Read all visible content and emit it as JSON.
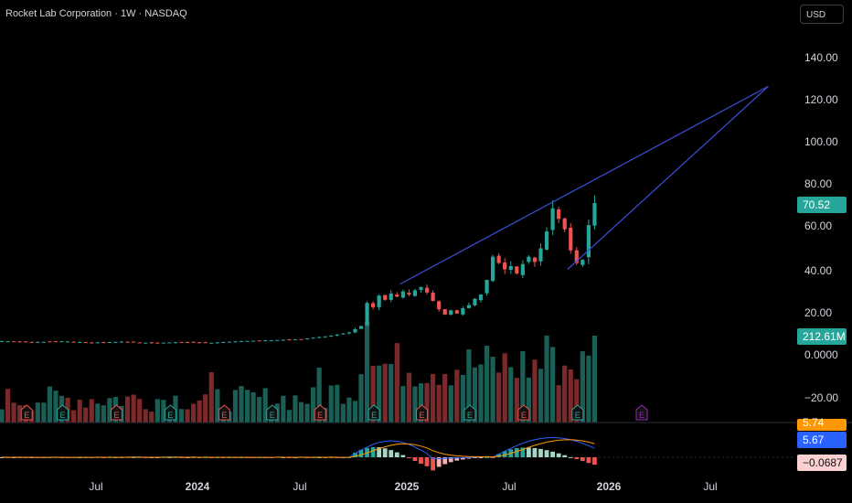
{
  "header": {
    "title": "Rocket Lab Corporation · 1W · NASDAQ",
    "currency_button": "USD"
  },
  "colors": {
    "bull": "#26a69a",
    "bear": "#ef5350",
    "trendline": "#3b4fd8",
    "macd": "#2962ff",
    "signal": "#ff9800",
    "volume_bull": "#1b5e55",
    "volume_bear": "#7a2a2a",
    "earnings_future": "#9c27b0"
  },
  "price_axis": {
    "ticks": [
      "140.00",
      "120.00",
      "100.00",
      "80.00",
      "60.00",
      "40.00",
      "20.00",
      "0.0000",
      "−20.00"
    ],
    "price_badge": "70.52",
    "volume_badge": "212.61M"
  },
  "macd_axis": {
    "badge_signal": "5.74",
    "badge_macd": "5.67",
    "badge_hist": "−0.0687"
  },
  "time_axis": {
    "labels": [
      "Jul",
      "2024",
      "Jul",
      "2025",
      "Jul",
      "2026",
      "Jul"
    ]
  },
  "earnings_markers": {
    "label": "E",
    "count_past": 14,
    "count_future": 1
  },
  "chart_data": {
    "type": "candlestick",
    "interval": "1W",
    "symbol": "Rocket Lab Corporation",
    "exchange": "NASDAQ",
    "y_range": [
      -30,
      150
    ],
    "x_labels": [
      "Jul",
      "2024",
      "Jul",
      "2025",
      "Jul",
      "2026",
      "Jul"
    ],
    "last_price": 70.52,
    "last_volume": "212.61M",
    "price_path": [
      [
        0,
        4.9
      ],
      [
        5,
        4.4
      ],
      [
        10,
        4.8
      ],
      [
        15,
        4.2
      ],
      [
        20,
        4.6
      ],
      [
        25,
        4.0
      ],
      [
        30,
        4.4
      ],
      [
        35,
        4.1
      ],
      [
        40,
        4.9
      ],
      [
        45,
        5.3
      ],
      [
        50,
        5.8
      ],
      [
        55,
        7.5
      ],
      [
        58,
        9.0
      ],
      [
        60,
        12.0
      ],
      [
        61,
        23.0
      ],
      [
        62,
        21.0
      ],
      [
        63,
        26.5
      ],
      [
        64,
        24.5
      ],
      [
        65,
        27.5
      ],
      [
        66,
        26.0
      ],
      [
        67,
        28.5
      ],
      [
        68,
        27.0
      ],
      [
        69,
        29.0
      ],
      [
        70,
        30.5
      ],
      [
        71,
        28.0
      ],
      [
        72,
        24.0
      ],
      [
        73,
        20.0
      ],
      [
        74,
        17.5
      ],
      [
        75,
        19.5
      ],
      [
        76,
        18.0
      ],
      [
        77,
        20.5
      ],
      [
        78,
        22.0
      ],
      [
        79,
        25.0
      ],
      [
        80,
        27.0
      ],
      [
        81,
        34.0
      ],
      [
        82,
        45.0
      ],
      [
        83,
        42.0
      ],
      [
        84,
        39.0
      ],
      [
        85,
        40.5
      ],
      [
        86,
        37.0
      ],
      [
        87,
        41.5
      ],
      [
        88,
        45.0
      ],
      [
        89,
        42.5
      ],
      [
        90,
        49.0
      ],
      [
        91,
        57.0
      ],
      [
        92,
        68.0
      ],
      [
        93,
        63.0
      ],
      [
        94,
        58.0
      ],
      [
        95,
        48.0
      ],
      [
        96,
        42.0
      ],
      [
        97,
        43.5
      ],
      [
        98,
        60.0
      ],
      [
        99,
        70.52
      ]
    ],
    "trendlines": [
      {
        "name": "upper",
        "from": [
          66.5,
          32
        ],
        "to": [
          128,
          126
        ]
      },
      {
        "name": "lower",
        "from": [
          94.5,
          39
        ],
        "to": [
          128,
          126
        ]
      }
    ]
  }
}
